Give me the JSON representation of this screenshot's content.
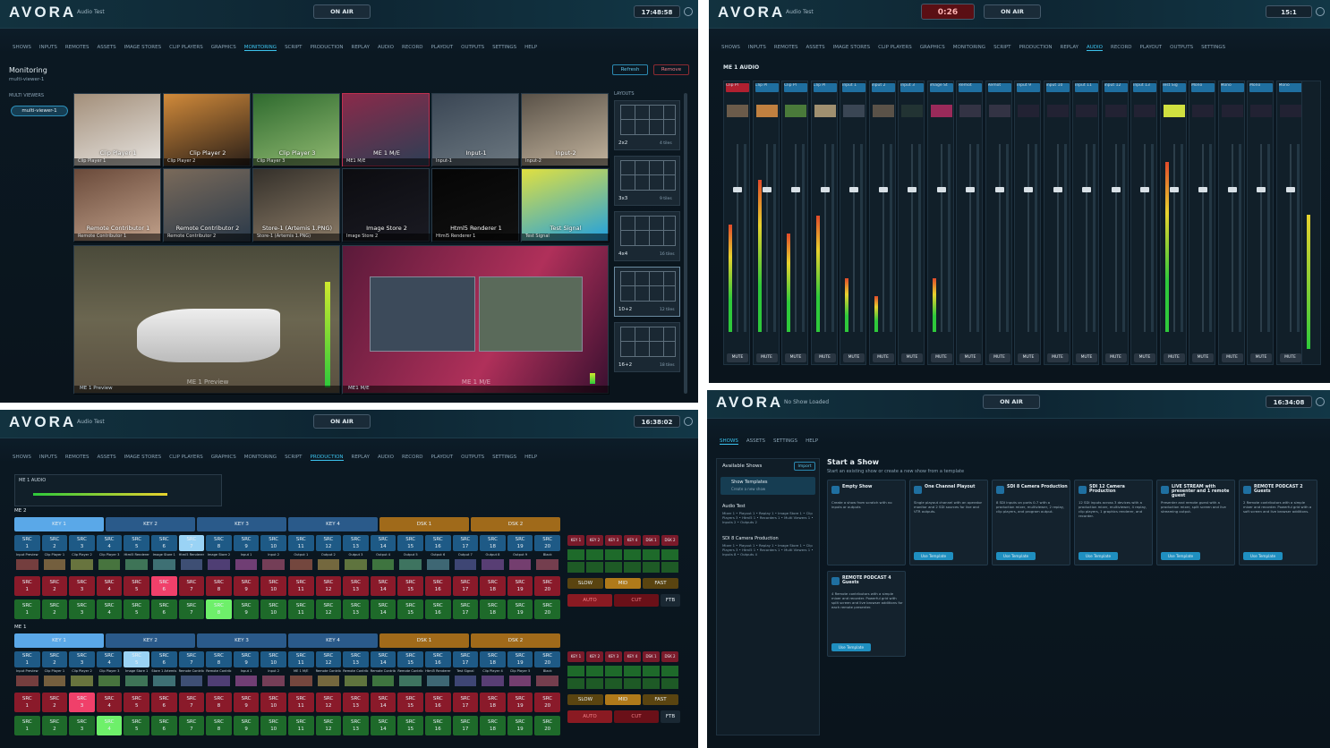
{
  "monitoring": {
    "header": {
      "logo": "AVORA",
      "show": "Audio Test",
      "on_air": "ON AIR",
      "clock": "17:48:58"
    },
    "nav": [
      "SHOWS",
      "INPUTS",
      "REMOTES",
      "ASSETS",
      "IMAGE STORES",
      "CLIP PLAYERS",
      "GRAPHICS",
      "MONITORING",
      "SCRIPT",
      "PRODUCTION",
      "REPLAY",
      "AUDIO",
      "RECORD",
      "PLAYOUT",
      "OUTPUTS",
      "SETTINGS",
      "HELP"
    ],
    "active_nav": 7,
    "title": "Monitoring",
    "subtitle": "multi-viewer-1",
    "refresh": "Refresh",
    "remove": "Remove",
    "sidebar_heading": "MULTI VIEWERS",
    "viewers": [
      "multi-viewer-1"
    ],
    "layouts_heading": "LAYOUTS",
    "tiles": [
      {
        "label": "Clip Player 1",
        "source": "Clip Player 1"
      },
      {
        "label": "Clip Player 2",
        "source": "Clip Player 2"
      },
      {
        "label": "Clip Player 3",
        "source": "Clip Player 3"
      },
      {
        "label": "ME 1 M/E",
        "source": "ME1 M/E"
      },
      {
        "label": "Input-1",
        "source": "Input-1"
      },
      {
        "label": "Input-2",
        "source": "Input-2"
      },
      {
        "label": "Remote Contributor 1",
        "source": "Remote Contributor 1"
      },
      {
        "label": "Remote Contributor 2",
        "source": "Remote Contributor 2"
      },
      {
        "label": "Store-1 (Artemis 1.PNG)",
        "source": "Store-1 (Artemis 1.PNG)"
      },
      {
        "label": "Image Store 2",
        "source": "Image Store 2"
      },
      {
        "label": "Html5 Renderer 1",
        "source": "Html5 Renderer 1"
      },
      {
        "label": "Test Signal",
        "source": "Test Signal"
      }
    ],
    "large_tiles": [
      {
        "label": "ME 1 Preview",
        "source": "ME 1 Preview"
      },
      {
        "label": "ME 1 M/E",
        "source": "ME1 M/E"
      }
    ],
    "layouts": [
      {
        "name": "2x2",
        "tiles": "4 tiles"
      },
      {
        "name": "3x3",
        "tiles": "9 tiles"
      },
      {
        "name": "4x4",
        "tiles": "16 tiles"
      },
      {
        "name": "10+2",
        "tiles": "12 tiles"
      },
      {
        "name": "16+2",
        "tiles": "18 tiles"
      }
    ]
  },
  "audio": {
    "header": {
      "logo": "AVORA",
      "show": "Audio Test",
      "timer": "0:26",
      "on_air": "ON AIR",
      "clock": "15:1"
    },
    "nav": [
      "SHOWS",
      "INPUTS",
      "REMOTES",
      "ASSETS",
      "IMAGE STORES",
      "CLIP PLAYERS",
      "GRAPHICS",
      "MONITORING",
      "SCRIPT",
      "PRODUCTION",
      "REPLAY",
      "AUDIO",
      "RECORD",
      "PLAYOUT",
      "OUTPUTS",
      "SETTINGS"
    ],
    "active_nav": 11,
    "section": "ME 1 AUDIO",
    "channels": [
      "Clip Pl",
      "Clip Pl",
      "Clip Pl",
      "Clip Pl",
      "Input 1",
      "Input 2",
      "Input 3",
      "Image St",
      "Remot",
      "Remot",
      "Input 9",
      "Input 10",
      "Input 11",
      "Input 12",
      "Input 13",
      "Test Sig",
      "Mono",
      "Mono",
      "Mono",
      "Mono"
    ],
    "mute": "MUTE"
  },
  "production": {
    "header": {
      "logo": "AVORA",
      "show": "Audio Test",
      "on_air": "ON AIR",
      "clock": "16:38:02"
    },
    "nav": [
      "SHOWS",
      "INPUTS",
      "REMOTES",
      "ASSETS",
      "IMAGE STORES",
      "CLIP PLAYERS",
      "GRAPHICS",
      "MONITORING",
      "SCRIPT",
      "PRODUCTION",
      "REPLAY",
      "AUDIO",
      "RECORD",
      "PLAYOUT",
      "OUTPUTS",
      "SETTINGS",
      "HELP"
    ],
    "active_nav": 9,
    "audio_box": "ME 1 AUDIO",
    "src": "SRC",
    "numbers": [
      1,
      2,
      3,
      4,
      5,
      6,
      7,
      8,
      9,
      10,
      11,
      12,
      13,
      14,
      15,
      16,
      17,
      18,
      19,
      20
    ],
    "keys": [
      "KEY 1",
      "KEY 2",
      "KEY 3",
      "KEY 4",
      "DSK 1",
      "DSK 2"
    ],
    "rates": [
      "SLOW",
      "MID",
      "FAST"
    ],
    "transition": [
      "AUTO",
      "CUT"
    ],
    "ftb": "FTB",
    "buses": [
      {
        "name": "ME 2",
        "selected_source": 7,
        "selected_program": 6,
        "selected_preview": 8,
        "sources": [
          "Input Preview",
          "Clip Player 1",
          "Clip Player 2",
          "Clip Player 3",
          "Html5 Renderer",
          "Image Store 1",
          "Html5 Renderer",
          "Image Store 2",
          "Input 1",
          "Input 2",
          "Output 1",
          "Output 2",
          "Output 3",
          "Output 4",
          "Output 5",
          "Output 6",
          "Output 7",
          "Output 8",
          "Output 9",
          "Black"
        ]
      },
      {
        "name": "ME 1",
        "selected_source": 5,
        "selected_program": 3,
        "selected_preview": 4,
        "sources": [
          "Input Preview",
          "Clip Player 1",
          "Clip Player 2",
          "Clip Player 3",
          "Image Store 1",
          "Store 1 Artemis",
          "Remote Contrib 1",
          "Remote Contrib 2",
          "Input 1",
          "Input 2",
          "ME 1 M/E",
          "Remote Contrib 3",
          "Remote Contrib 4",
          "Remote Contrib 5",
          "Remote Contrib 6",
          "Html5 Renderer",
          "Test Signal",
          "Clip Player 4",
          "Clip Player 5",
          "Black"
        ]
      }
    ]
  },
  "shows": {
    "header": {
      "logo": "AVORA",
      "show": "No Show Loaded",
      "on_air": "ON AIR",
      "clock": "16:34:08"
    },
    "nav": [
      "SHOWS",
      "ASSETS",
      "SETTINGS",
      "HELP"
    ],
    "active_nav": 0,
    "sidebar_title": "Available Shows",
    "import": "Import",
    "templates": {
      "title": "Show Templates",
      "subtitle": "Create a new show"
    },
    "available": [
      {
        "name": "Audio Test",
        "detail": "Mixer 1 • Playout 1 • Replay 1 • Image Store 1 • Clip Players 3 • Html5 1 • Recorders 1 • Multi Viewers 1 • Inputs 2 • Outputs 2"
      },
      {
        "name": "SDI 8 Camera Production",
        "detail": "Mixer 1 • Playout 1 • Replay 1 • Image Store 1 • Clip Players 3 • Html5 1 • Recorders 1 • Multi Viewers 1 • Inputs 8 • Outputs 4"
      }
    ],
    "title": "Start a Show",
    "subtitle": "Start an existing show or create a new show from a template",
    "use_template": "Use Template",
    "empty": {
      "title": "Empty Show",
      "desc": "Create a show from scratch with no inputs or outputs"
    },
    "cards": [
      {
        "title": "One Channel Playout",
        "desc": "Single playout channel with an operator monitor and 2 SDI sources for live and VTR outputs."
      },
      {
        "title": "SDI 8 Camera Production",
        "desc": "8 SDI inputs on ports 0-7 with a production mixer, multiviewer, 2 replay, clip players, and program output."
      },
      {
        "title": "SDI 12 Camera Production",
        "desc": "12 SDI inputs across 3 devices with a production mixer, multiviewer, 4 replay, clip players, 1 graphics renderer, and recorder."
      },
      {
        "title": "LIVE STREAM with presenter and 1 remote guest",
        "desc": "Presenter and remote guest with a production mixer, split screen and live streaming output."
      },
      {
        "title": "REMOTE PODCAST 2 Guests",
        "desc": "2 Remote contributors with a simple mixer and recorder. Powerful grid with a soft screen and live browser additions."
      },
      {
        "title": "REMOTE PODCAST 4 Guests",
        "desc": "4 Remote contributors with a simple mixer and recorder. Powerful grid with split screen and live browser additions for each remote presenter."
      }
    ]
  }
}
